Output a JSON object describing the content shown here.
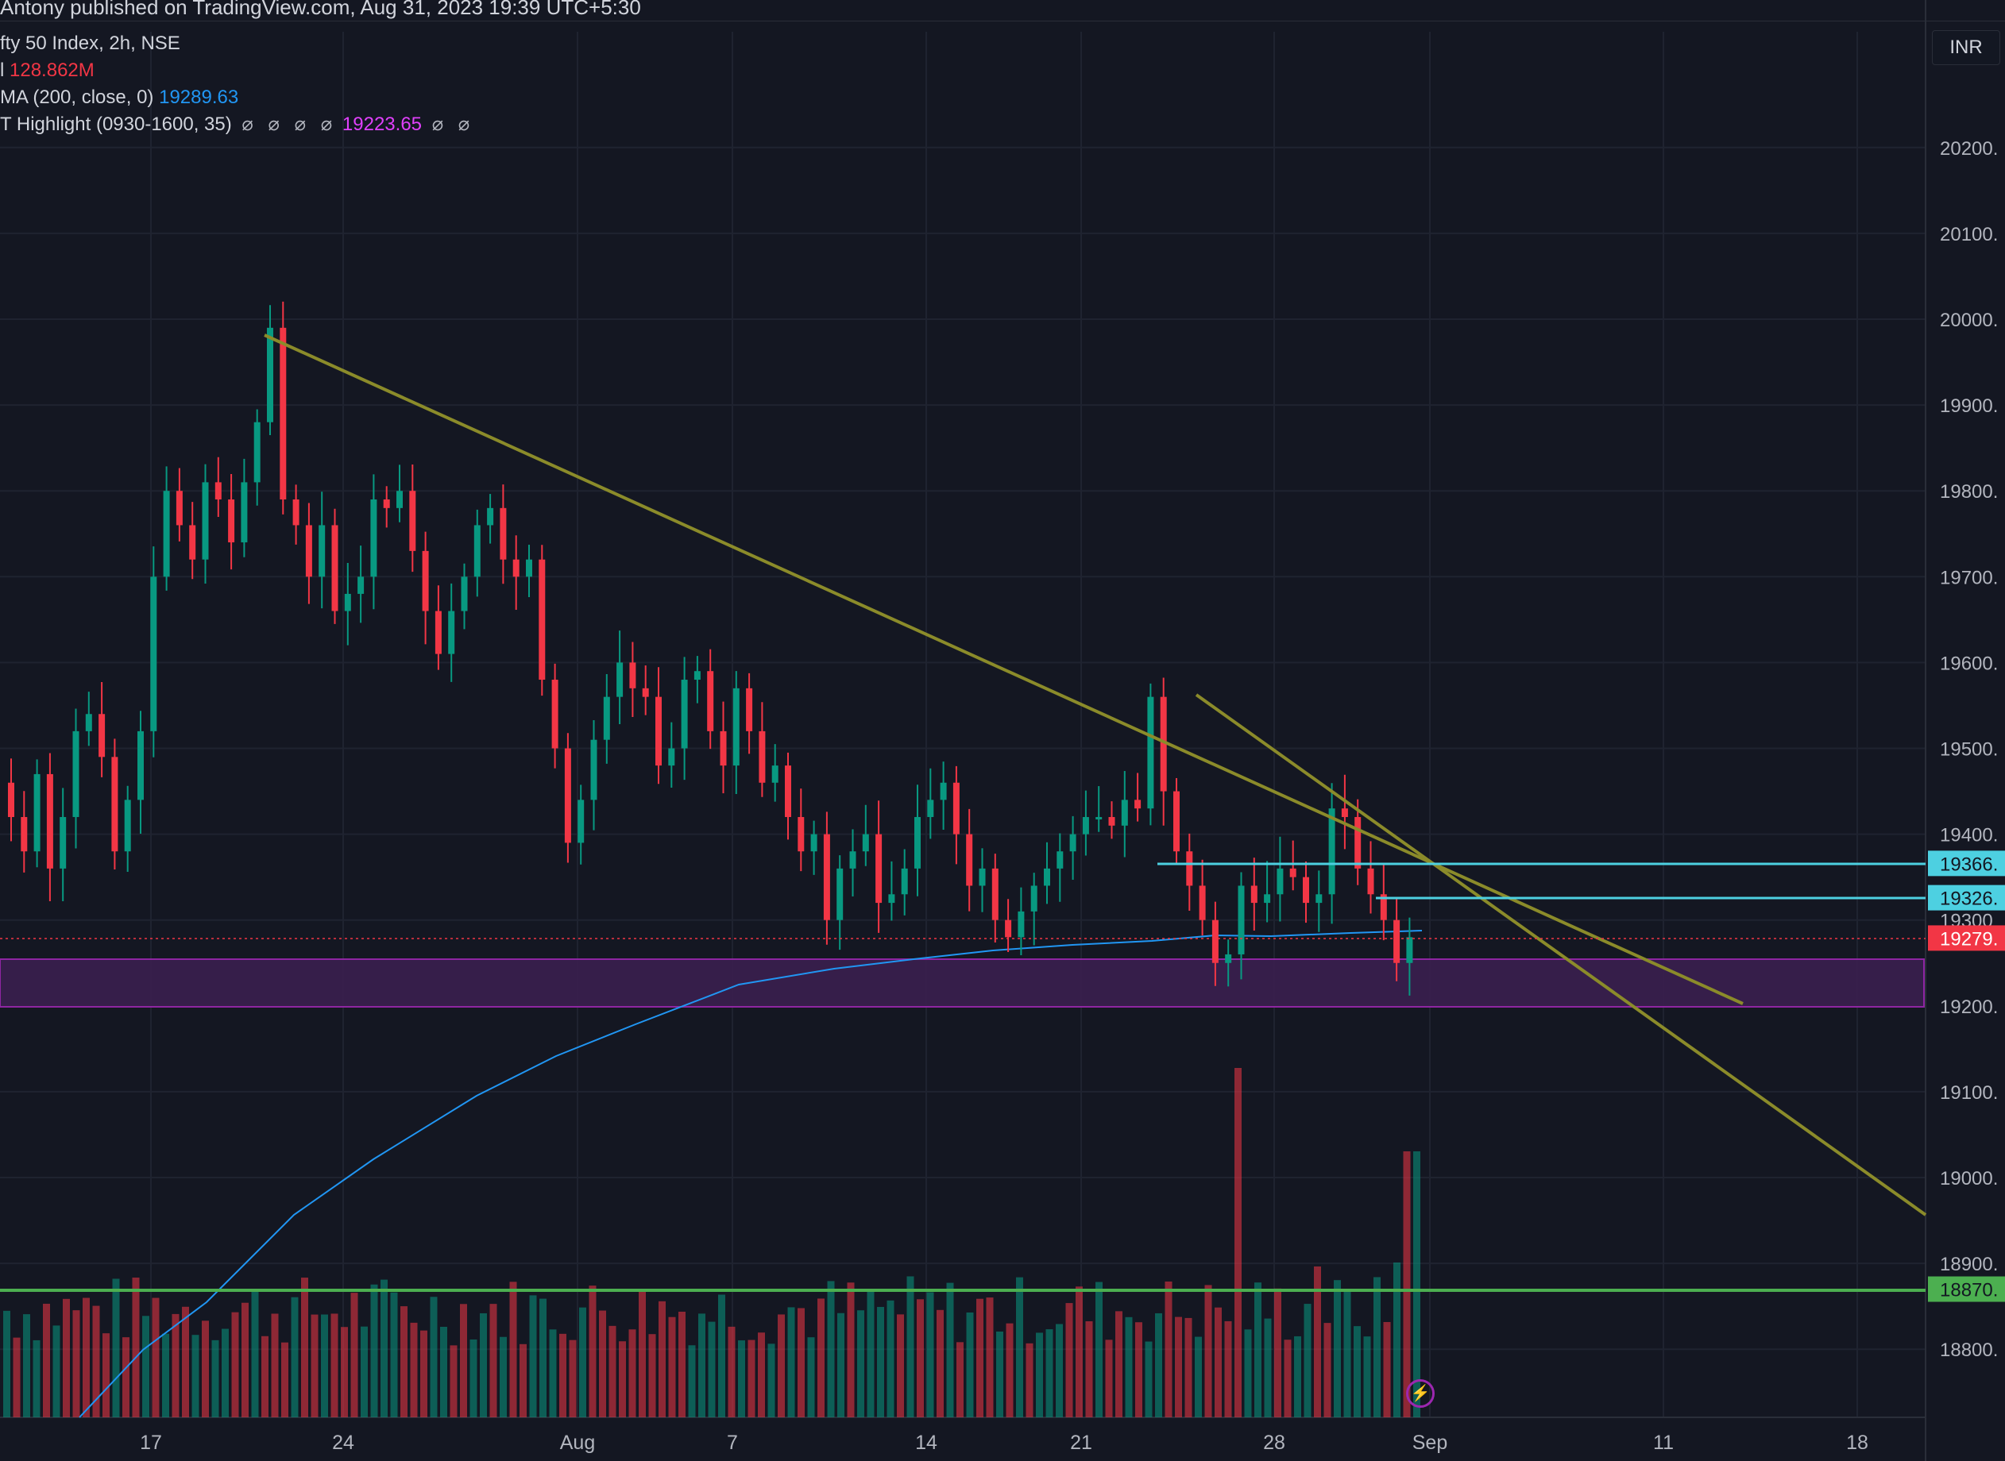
{
  "header": {
    "published": "Antony published on TradingView.com, Aug 31, 2023 19:39 UTC+5:30"
  },
  "legend": {
    "symbol": "fty 50 Index, 2h, NSE",
    "volume_label": "l",
    "volume_value": "128.862M",
    "ma_label": "MA (200, close, 0)",
    "ma_value": "19289.63",
    "highlight_label": "T Highlight (0930-1600, 35)",
    "highlight_symbols_before": "⌀ ⌀ ⌀ ⌀",
    "highlight_value": "19223.65",
    "highlight_symbols_after": "⌀ ⌀"
  },
  "currency": "INR",
  "price_axis": {
    "ticks": [
      "20200.",
      "20100.",
      "20000.",
      "19900.",
      "19800.",
      "19700.",
      "19600.",
      "19500.",
      "19400.",
      "19300",
      "19200.",
      "19100.",
      "19000.",
      "18900.",
      "18800."
    ],
    "tick_values": [
      20200,
      20100,
      20000,
      19900,
      19800,
      19700,
      19600,
      19500,
      19400,
      19300,
      19200,
      19100,
      19000,
      18900,
      18800
    ]
  },
  "time_axis": {
    "labels": [
      "17",
      "24",
      "Aug",
      "7",
      "14",
      "21",
      "28",
      "Sep",
      "11",
      "18"
    ]
  },
  "price_labels": [
    {
      "text": "19366.",
      "value": 19366,
      "color": "#4dd0e1",
      "text_color": "#131722"
    },
    {
      "text": "19326.",
      "value": 19326,
      "color": "#4dd0e1",
      "text_color": "#131722"
    },
    {
      "text": "19279.",
      "value": 19279,
      "color": "#f23645",
      "text_color": "#ffffff"
    },
    {
      "text": "18870.",
      "value": 18870,
      "color": "#4caf50",
      "text_color": "#131722"
    }
  ],
  "colors": {
    "up": "#089981",
    "down": "#f23645",
    "grid": "#1f2330",
    "trendline": "#8b8b2a",
    "ma": "#2196f3",
    "zone_fill": "#3a1f4f",
    "zone_border": "#9c27b0",
    "support": "#4caf50",
    "resistance": "#4dd0e1",
    "zigzag": "#9c27b0"
  }
}
